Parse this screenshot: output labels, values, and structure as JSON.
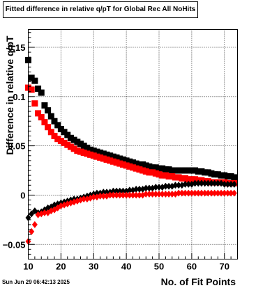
{
  "timestamp": "Sun Jun 29 06:42:13 2025",
  "chart_data": {
    "type": "scatter",
    "title": "Fitted difference in relative q/pT for Global Rec All NoHits",
    "xlabel": "No. of Fit Points",
    "ylabel": "Difference in relative q/pT",
    "xlim": [
      10,
      74
    ],
    "ylim": [
      -0.065,
      0.168
    ],
    "xticks": [
      10,
      20,
      30,
      40,
      50,
      60,
      70
    ],
    "yticks": [
      -0.05,
      0,
      0.05,
      0.1,
      0.15
    ],
    "ytick_labels": [
      "−0.05",
      "0",
      "0.05",
      "0.1",
      "0.15"
    ],
    "grid": true,
    "colors": {
      "series_black": "#000000",
      "series_red": "#ff0000"
    },
    "series": [
      {
        "color": "black",
        "marker": "square",
        "x": [
          10,
          11,
          12,
          13,
          14,
          15,
          16,
          17,
          18,
          19,
          20,
          21,
          22,
          23,
          24,
          25,
          26,
          27,
          28,
          29,
          30,
          31,
          32,
          33,
          34,
          35,
          36,
          37,
          38,
          39,
          40,
          41,
          42,
          43,
          44,
          45,
          46,
          47,
          48,
          49,
          50,
          51,
          52,
          53,
          54,
          55,
          56,
          57,
          58,
          59,
          60,
          61,
          62,
          63,
          64,
          65,
          66,
          67,
          68,
          69,
          70,
          71,
          72,
          73
        ],
        "y": [
          0.137,
          0.119,
          0.116,
          0.108,
          0.104,
          0.091,
          0.086,
          0.08,
          0.075,
          0.071,
          0.067,
          0.064,
          0.061,
          0.058,
          0.056,
          0.054,
          0.052,
          0.05,
          0.048,
          0.046,
          0.045,
          0.044,
          0.043,
          0.042,
          0.041,
          0.04,
          0.039,
          0.038,
          0.037,
          0.036,
          0.035,
          0.034,
          0.033,
          0.032,
          0.031,
          0.031,
          0.03,
          0.029,
          0.028,
          0.028,
          0.027,
          0.027,
          0.026,
          0.026,
          0.025,
          0.025,
          0.025,
          0.025,
          0.025,
          0.025,
          0.025,
          0.025,
          0.024,
          0.024,
          0.023,
          0.023,
          0.022,
          0.021,
          0.021,
          0.02,
          0.02,
          0.019,
          0.019,
          0.018
        ]
      },
      {
        "color": "red",
        "marker": "square",
        "x": [
          10,
          11,
          12,
          13,
          14,
          15,
          16,
          17,
          18,
          19,
          20,
          21,
          22,
          23,
          24,
          25,
          26,
          27,
          28,
          29,
          30,
          31,
          32,
          33,
          34,
          35,
          36,
          37,
          38,
          39,
          40,
          41,
          42,
          43,
          44,
          45,
          46,
          47,
          48,
          49,
          50,
          51,
          52,
          53,
          54,
          55,
          56,
          57,
          58,
          59,
          60,
          61,
          62,
          63,
          64,
          65,
          66,
          67,
          68,
          69,
          70,
          71,
          72,
          73
        ],
        "y": [
          0.109,
          0.107,
          0.093,
          0.083,
          0.079,
          0.074,
          0.069,
          0.064,
          0.06,
          0.057,
          0.055,
          0.053,
          0.051,
          0.049,
          0.047,
          0.045,
          0.044,
          0.043,
          0.042,
          0.041,
          0.04,
          0.039,
          0.038,
          0.037,
          0.036,
          0.035,
          0.034,
          0.033,
          0.032,
          0.031,
          0.03,
          0.029,
          0.028,
          0.027,
          0.026,
          0.025,
          0.024,
          0.023,
          0.023,
          0.022,
          0.021,
          0.02,
          0.02,
          0.019,
          0.019,
          0.018,
          0.018,
          0.017,
          0.017,
          0.016,
          0.016,
          0.016,
          0.015,
          0.015,
          0.014,
          0.014,
          0.013,
          0.013,
          0.013,
          0.013,
          0.013,
          0.012,
          0.012,
          0.012
        ]
      },
      {
        "color": "black",
        "marker": "diamond",
        "x": [
          10,
          11,
          12,
          13,
          14,
          15,
          16,
          17,
          18,
          19,
          20,
          21,
          22,
          23,
          24,
          25,
          26,
          27,
          28,
          29,
          30,
          31,
          32,
          33,
          34,
          35,
          36,
          37,
          38,
          39,
          40,
          41,
          42,
          43,
          44,
          45,
          46,
          47,
          48,
          49,
          50,
          51,
          52,
          53,
          54,
          55,
          56,
          57,
          58,
          59,
          60,
          61,
          62,
          63,
          64,
          65,
          66,
          67,
          68,
          69,
          70,
          71,
          72,
          73
        ],
        "y": [
          -0.023,
          -0.019,
          -0.016,
          -0.018,
          -0.017,
          -0.015,
          -0.013,
          -0.012,
          -0.01,
          -0.009,
          -0.008,
          -0.007,
          -0.006,
          -0.005,
          -0.004,
          -0.004,
          -0.003,
          -0.002,
          -0.001,
          0.0,
          0.001,
          0.002,
          0.002,
          0.003,
          0.003,
          0.003,
          0.004,
          0.004,
          0.004,
          0.004,
          0.004,
          0.005,
          0.005,
          0.006,
          0.006,
          0.006,
          0.007,
          0.007,
          0.007,
          0.008,
          0.008,
          0.008,
          0.009,
          0.009,
          0.009,
          0.01,
          0.01,
          0.01,
          0.011,
          0.011,
          0.011,
          0.012,
          0.012,
          0.012,
          0.012,
          0.012,
          0.012,
          0.012,
          0.012,
          0.012,
          0.011,
          0.011,
          0.011,
          0.011
        ]
      },
      {
        "color": "red",
        "marker": "diamond",
        "x": [
          10,
          11,
          12,
          13,
          14,
          15,
          16,
          17,
          18,
          19,
          20,
          21,
          22,
          23,
          24,
          25,
          26,
          27,
          28,
          29,
          30,
          31,
          32,
          33,
          34,
          35,
          36,
          37,
          38,
          39,
          40,
          41,
          42,
          43,
          44,
          45,
          46,
          47,
          48,
          49,
          50,
          51,
          52,
          53,
          54,
          55,
          56,
          57,
          58,
          59,
          60,
          61,
          62,
          63,
          64,
          65,
          66,
          67,
          68,
          69,
          70,
          71,
          72,
          73
        ],
        "y": [
          -0.047,
          -0.037,
          -0.03,
          -0.02,
          -0.019,
          -0.018,
          -0.018,
          -0.016,
          -0.015,
          -0.013,
          -0.011,
          -0.01,
          -0.009,
          -0.008,
          -0.007,
          -0.006,
          -0.005,
          -0.004,
          -0.004,
          -0.003,
          -0.002,
          -0.002,
          -0.001,
          -0.001,
          -0.001,
          0.0,
          0.0,
          0.0,
          0.0,
          0.0,
          0.0,
          0.0,
          0.0,
          0.0,
          0.0,
          0.0,
          0.001,
          0.001,
          0.001,
          0.001,
          0.001,
          0.001,
          0.001,
          0.001,
          0.001,
          0.001,
          0.002,
          0.002,
          0.002,
          0.002,
          0.002,
          0.002,
          0.002,
          0.002,
          0.002,
          0.002,
          0.002,
          0.002,
          0.002,
          0.002,
          0.002,
          0.002,
          0.002,
          0.002
        ]
      }
    ]
  }
}
